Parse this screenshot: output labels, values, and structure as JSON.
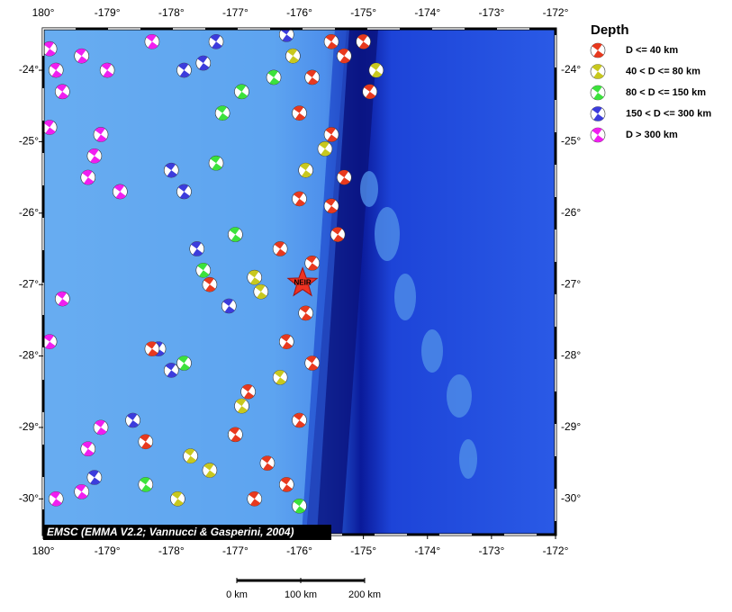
{
  "map": {
    "lon_ticks": [
      {
        "value": 180,
        "label": "180°"
      },
      {
        "value": -179,
        "label": "-179°"
      },
      {
        "value": -178,
        "label": "-178°"
      },
      {
        "value": -177,
        "label": "-177°"
      },
      {
        "value": -176,
        "label": "-176°"
      },
      {
        "value": -175,
        "label": "-175°"
      },
      {
        "value": -174,
        "label": "-174°"
      },
      {
        "value": -173,
        "label": "-173°"
      },
      {
        "value": -172,
        "label": "-172°"
      }
    ],
    "lat_ticks": [
      {
        "value": -24,
        "label": "-24°"
      },
      {
        "value": -25,
        "label": "-25°"
      },
      {
        "value": -26,
        "label": "-26°"
      },
      {
        "value": -27,
        "label": "-27°"
      },
      {
        "value": -28,
        "label": "-28°"
      },
      {
        "value": -29,
        "label": "-29°"
      },
      {
        "value": -30,
        "label": "-30°"
      }
    ],
    "lon_range": [
      180,
      -172
    ],
    "lat_range": [
      -30.5,
      -23.42
    ],
    "credit": "EMSC (EMMA V2.2; Vannucci & Gasperini, 2004)",
    "station": {
      "label": "NEIR",
      "lon": -175.95,
      "lat": -26.98
    },
    "scale_bar": [
      {
        "value": 0,
        "label": "0 km"
      },
      {
        "value": 100,
        "label": "100 km"
      },
      {
        "value": 200,
        "label": "200 km"
      }
    ]
  },
  "legend": {
    "title": "Depth",
    "entries": [
      {
        "label": "D <= 40 km",
        "color": "#e8391e"
      },
      {
        "label": "40 < D <= 80 km",
        "color": "#c8c81e"
      },
      {
        "label": "80 < D <= 150 km",
        "color": "#3ce23c"
      },
      {
        "label": "150 < D <= 300 km",
        "color": "#3c3cdc"
      },
      {
        "label": "D > 300 km",
        "color": "#f01ef0"
      }
    ]
  },
  "events": [
    {
      "lon": -179.9,
      "lat": -23.7,
      "d": 4
    },
    {
      "lon": -179.8,
      "lat": -24.0,
      "d": 4
    },
    {
      "lon": -179.7,
      "lat": -24.3,
      "d": 4
    },
    {
      "lon": -179.4,
      "lat": -23.8,
      "d": 4
    },
    {
      "lon": -179.0,
      "lat": -24.0,
      "d": 4
    },
    {
      "lon": -179.1,
      "lat": -24.9,
      "d": 4
    },
    {
      "lon": -179.2,
      "lat": -25.2,
      "d": 4
    },
    {
      "lon": -178.8,
      "lat": -25.7,
      "d": 4
    },
    {
      "lon": -179.3,
      "lat": -25.5,
      "d": 4
    },
    {
      "lon": -178.3,
      "lat": -23.6,
      "d": 4
    },
    {
      "lon": -179.9,
      "lat": -24.8,
      "d": 4
    },
    {
      "lon": -179.7,
      "lat": -27.2,
      "d": 4
    },
    {
      "lon": -179.9,
      "lat": -27.8,
      "d": 4
    },
    {
      "lon": -179.1,
      "lat": -29.0,
      "d": 4
    },
    {
      "lon": -179.3,
      "lat": -29.3,
      "d": 4
    },
    {
      "lon": -179.4,
      "lat": -29.9,
      "d": 4
    },
    {
      "lon": -179.8,
      "lat": -30.0,
      "d": 4
    },
    {
      "lon": -177.3,
      "lat": -23.6,
      "d": 3
    },
    {
      "lon": -177.5,
      "lat": -23.9,
      "d": 3
    },
    {
      "lon": -177.8,
      "lat": -24.0,
      "d": 3
    },
    {
      "lon": -178.0,
      "lat": -25.4,
      "d": 3
    },
    {
      "lon": -177.8,
      "lat": -25.7,
      "d": 3
    },
    {
      "lon": -178.2,
      "lat": -27.9,
      "d": 3
    },
    {
      "lon": -178.0,
      "lat": -28.2,
      "d": 3
    },
    {
      "lon": -178.6,
      "lat": -28.9,
      "d": 3
    },
    {
      "lon": -179.2,
      "lat": -29.7,
      "d": 3
    },
    {
      "lon": -177.1,
      "lat": -27.3,
      "d": 3
    },
    {
      "lon": -177.6,
      "lat": -26.5,
      "d": 3
    },
    {
      "lon": -176.2,
      "lat": -23.5,
      "d": 3
    },
    {
      "lon": -176.9,
      "lat": -24.3,
      "d": 2
    },
    {
      "lon": -177.2,
      "lat": -24.6,
      "d": 2
    },
    {
      "lon": -177.3,
      "lat": -25.3,
      "d": 2
    },
    {
      "lon": -177.0,
      "lat": -26.3,
      "d": 2
    },
    {
      "lon": -176.4,
      "lat": -24.1,
      "d": 2
    },
    {
      "lon": -177.5,
      "lat": -26.8,
      "d": 2
    },
    {
      "lon": -177.8,
      "lat": -28.1,
      "d": 2
    },
    {
      "lon": -176.0,
      "lat": -30.1,
      "d": 2
    },
    {
      "lon": -178.4,
      "lat": -29.8,
      "d": 2
    },
    {
      "lon": -176.7,
      "lat": -26.9,
      "d": 1
    },
    {
      "lon": -176.6,
      "lat": -27.1,
      "d": 1
    },
    {
      "lon": -176.9,
      "lat": -28.7,
      "d": 1
    },
    {
      "lon": -177.7,
      "lat": -29.4,
      "d": 1
    },
    {
      "lon": -177.4,
      "lat": -29.6,
      "d": 1
    },
    {
      "lon": -177.9,
      "lat": -30.0,
      "d": 1
    },
    {
      "lon": -176.1,
      "lat": -23.8,
      "d": 1
    },
    {
      "lon": -175.9,
      "lat": -25.4,
      "d": 1
    },
    {
      "lon": -175.6,
      "lat": -25.1,
      "d": 1
    },
    {
      "lon": -174.8,
      "lat": -24.0,
      "d": 1
    },
    {
      "lon": -176.3,
      "lat": -28.3,
      "d": 1
    },
    {
      "lon": -175.5,
      "lat": -23.6,
      "d": 0
    },
    {
      "lon": -175.3,
      "lat": -23.8,
      "d": 0
    },
    {
      "lon": -175.0,
      "lat": -23.6,
      "d": 0
    },
    {
      "lon": -175.8,
      "lat": -24.1,
      "d": 0
    },
    {
      "lon": -176.0,
      "lat": -24.6,
      "d": 0
    },
    {
      "lon": -175.5,
      "lat": -24.9,
      "d": 0
    },
    {
      "lon": -175.3,
      "lat": -25.5,
      "d": 0
    },
    {
      "lon": -175.5,
      "lat": -25.9,
      "d": 0
    },
    {
      "lon": -175.4,
      "lat": -26.3,
      "d": 0
    },
    {
      "lon": -176.0,
      "lat": -25.8,
      "d": 0
    },
    {
      "lon": -176.3,
      "lat": -26.5,
      "d": 0
    },
    {
      "lon": -175.8,
      "lat": -26.7,
      "d": 0
    },
    {
      "lon": -175.9,
      "lat": -27.4,
      "d": 0
    },
    {
      "lon": -176.2,
      "lat": -27.8,
      "d": 0
    },
    {
      "lon": -175.8,
      "lat": -28.1,
      "d": 0
    },
    {
      "lon": -176.0,
      "lat": -28.9,
      "d": 0
    },
    {
      "lon": -176.5,
      "lat": -29.5,
      "d": 0
    },
    {
      "lon": -176.7,
      "lat": -30.0,
      "d": 0
    },
    {
      "lon": -177.0,
      "lat": -29.1,
      "d": 0
    },
    {
      "lon": -176.8,
      "lat": -28.5,
      "d": 0
    },
    {
      "lon": -177.4,
      "lat": -27.0,
      "d": 0
    },
    {
      "lon": -178.3,
      "lat": -27.9,
      "d": 0
    },
    {
      "lon": -178.4,
      "lat": -29.2,
      "d": 0
    },
    {
      "lon": -176.2,
      "lat": -29.8,
      "d": 0
    },
    {
      "lon": -174.9,
      "lat": -24.3,
      "d": 0
    }
  ]
}
